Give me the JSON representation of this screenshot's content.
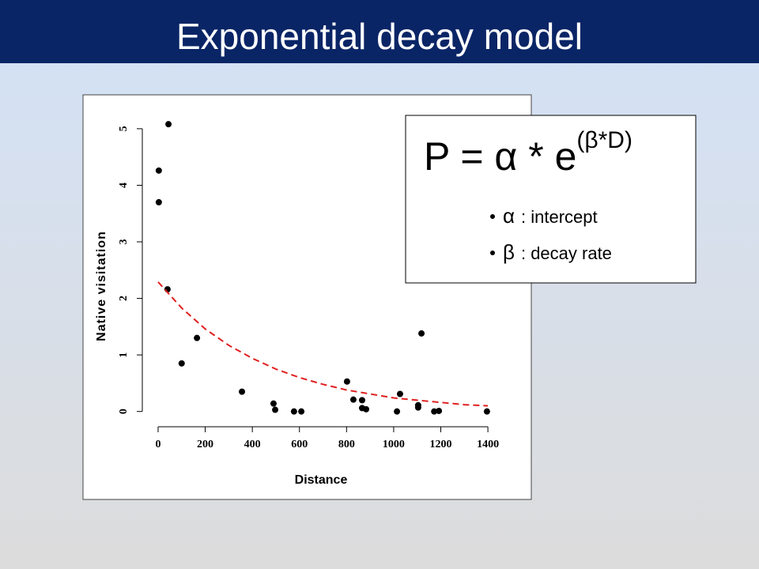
{
  "title": "Exponential decay model",
  "formula": {
    "main": "P = α * e",
    "exponent": "(β*D)"
  },
  "definitions": [
    {
      "symbol": "α",
      "text": ": intercept"
    },
    {
      "symbol": "β",
      "text": ": decay rate"
    }
  ],
  "chart_data": {
    "type": "scatter",
    "xlabel": "Distance",
    "ylabel": "Native visitation",
    "xlim": [
      -67,
      1450
    ],
    "ylim": [
      -0.27,
      5.18
    ],
    "xticks": [
      0,
      200,
      400,
      600,
      800,
      1000,
      1200,
      1400
    ],
    "yticks": [
      0,
      1,
      2,
      3,
      4,
      5
    ],
    "series": [
      {
        "type": "scatter",
        "color": "#000000",
        "x": [
          44,
          3,
          3,
          40,
          100,
          165,
          356,
          490,
          497,
          577,
          608,
          802,
          829,
          866,
          866,
          883,
          1014,
          1027,
          1104,
          1104,
          1118,
          1172,
          1192,
          1396
        ],
        "values": [
          5.08,
          4.26,
          3.7,
          2.16,
          0.85,
          1.3,
          0.35,
          0.14,
          0.03,
          0,
          0,
          0.53,
          0.21,
          0.2,
          0.06,
          0.04,
          0,
          0.31,
          0.07,
          0.11,
          1.38,
          0,
          0.01,
          0
        ]
      },
      {
        "type": "line",
        "color": "#e02020",
        "dashed": true,
        "x": [
          0,
          100,
          200,
          300,
          400,
          500,
          600,
          700,
          800,
          900,
          1000,
          1100,
          1200,
          1300,
          1400
        ],
        "values": [
          2.29,
          1.83,
          1.46,
          1.17,
          0.94,
          0.75,
          0.6,
          0.48,
          0.38,
          0.31,
          0.24,
          0.2,
          0.16,
          0.12,
          0.1
        ]
      }
    ]
  }
}
